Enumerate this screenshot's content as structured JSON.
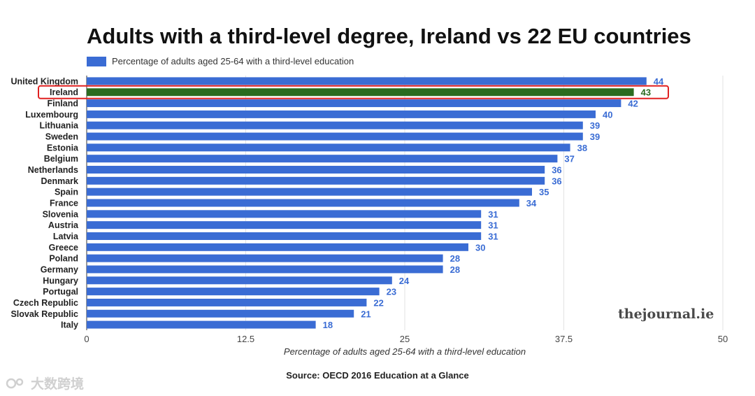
{
  "chart_data": {
    "type": "bar",
    "orientation": "horizontal",
    "title": "Adults with a third-level degree, Ireland vs 22 EU countries",
    "legend": "Percentage of adults aged 25-64 with a third-level education",
    "legend_position": "top-left",
    "xlabel": "Percentage of adults aged 25-64 with a third-level education",
    "ylabel": "",
    "xlim": [
      0,
      50
    ],
    "xticks": [
      "0",
      "12.5",
      "25",
      "37.5",
      "50"
    ],
    "xtick_values": [
      0,
      12.5,
      25,
      37.5,
      50
    ],
    "grid": true,
    "categories": [
      "United Kingdom",
      "Ireland",
      "Finland",
      "Luxembourg",
      "Lithuania",
      "Sweden",
      "Estonia",
      "Belgium",
      "Netherlands",
      "Denmark",
      "Spain",
      "France",
      "Slovenia",
      "Austria",
      "Latvia",
      "Greece",
      "Poland",
      "Germany",
      "Hungary",
      "Portugal",
      "Czech Republic",
      "Slovak Republic",
      "Italy"
    ],
    "values": [
      44,
      43,
      42,
      40,
      39,
      39,
      38,
      37,
      36,
      36,
      35,
      34,
      31,
      31,
      31,
      30,
      28,
      28,
      24,
      23,
      22,
      21,
      18
    ],
    "highlight": "Ireland",
    "series_color": "#3a6cd4",
    "highlight_color": "#2a6b1f",
    "highlight_box_color": "#e02020"
  },
  "source": "Source: OECD 2016 Education at a Glance",
  "brand": "thejournal.ie",
  "corner_watermark": "大数跨境"
}
